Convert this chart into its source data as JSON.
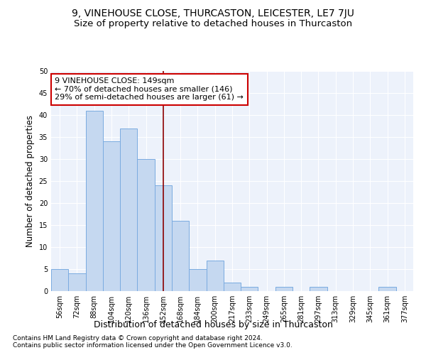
{
  "title": "9, VINEHOUSE CLOSE, THURCASTON, LEICESTER, LE7 7JU",
  "subtitle": "Size of property relative to detached houses in Thurcaston",
  "xlabel": "Distribution of detached houses by size in Thurcaston",
  "ylabel": "Number of detached properties",
  "footnote1": "Contains HM Land Registry data © Crown copyright and database right 2024.",
  "footnote2": "Contains public sector information licensed under the Open Government Licence v3.0.",
  "categories": [
    "56sqm",
    "72sqm",
    "88sqm",
    "104sqm",
    "120sqm",
    "136sqm",
    "152sqm",
    "168sqm",
    "184sqm",
    "200sqm",
    "217sqm",
    "233sqm",
    "249sqm",
    "265sqm",
    "281sqm",
    "297sqm",
    "313sqm",
    "329sqm",
    "345sqm",
    "361sqm",
    "377sqm"
  ],
  "values": [
    5,
    4,
    41,
    34,
    37,
    30,
    24,
    16,
    5,
    7,
    2,
    1,
    0,
    1,
    0,
    1,
    0,
    0,
    0,
    1,
    0
  ],
  "bar_color": "#c5d8f0",
  "bar_edge_color": "#7aabe0",
  "vline_index": 6,
  "vline_color": "#8b0000",
  "annotation_line1": "9 VINEHOUSE CLOSE: 149sqm",
  "annotation_line2": "← 70% of detached houses are smaller (146)",
  "annotation_line3": "29% of semi-detached houses are larger (61) →",
  "annotation_box_color": "#ffffff",
  "annotation_box_edge_color": "#cc0000",
  "ylim": [
    0,
    50
  ],
  "yticks": [
    0,
    5,
    10,
    15,
    20,
    25,
    30,
    35,
    40,
    45,
    50
  ],
  "background_color": "#edf2fb",
  "title_fontsize": 10,
  "subtitle_fontsize": 9.5,
  "xlabel_fontsize": 9,
  "ylabel_fontsize": 8.5,
  "tick_fontsize": 7,
  "annotation_fontsize": 8,
  "footnote_fontsize": 6.5
}
